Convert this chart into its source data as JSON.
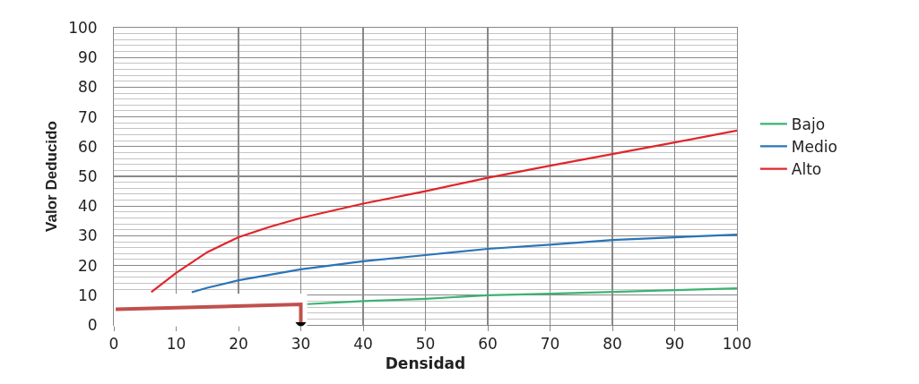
{
  "chart_data": {
    "type": "line",
    "xlabel": "Densidad",
    "ylabel": "Valor Deducido",
    "xlim": [
      0,
      100
    ],
    "xticks": [
      0,
      10,
      20,
      30,
      40,
      50,
      60,
      70,
      80,
      90,
      100
    ],
    "ylim": [
      0,
      100
    ],
    "yticks": [
      0,
      10,
      20,
      30,
      40,
      50,
      60,
      70,
      80,
      90,
      100
    ],
    "grid": true,
    "legend": "right",
    "marker": "none",
    "line_style": "solid",
    "series": [
      {
        "name": "Bajo",
        "color": "#3cb371",
        "x": [
          31,
          40,
          50,
          60,
          70,
          80,
          90,
          100
        ],
        "values": [
          7,
          8,
          8.8,
          10,
          10.5,
          11.1,
          11.7,
          12.3
        ]
      },
      {
        "name": "Medio",
        "color": "#2a74b8",
        "x": [
          12.5,
          15,
          20,
          30,
          40,
          50,
          60,
          70,
          80,
          90,
          100
        ],
        "values": [
          11,
          12.5,
          15,
          18.7,
          21.4,
          23.5,
          25.6,
          27,
          28.6,
          29.5,
          30.4
        ]
      },
      {
        "name": "Alto",
        "color": "#e0262b",
        "x": [
          6,
          10,
          15,
          20,
          25,
          30,
          40,
          50,
          60,
          70,
          80,
          90,
          100
        ],
        "values": [
          11,
          17.5,
          24.5,
          29.5,
          33,
          36,
          40.8,
          45,
          49.5,
          53.6,
          57.5,
          61.4,
          65.4
        ]
      }
    ]
  }
}
